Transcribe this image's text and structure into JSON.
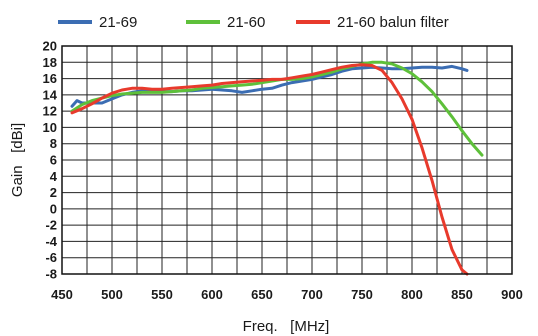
{
  "chart_data": {
    "type": "line",
    "xlabel": "Freq.   [MHz]",
    "ylabel": "Gain   [dBi]",
    "xlim": [
      450,
      900
    ],
    "ylim": [
      -8,
      20
    ],
    "x_ticks": [
      450,
      500,
      550,
      600,
      650,
      700,
      750,
      800,
      850,
      900
    ],
    "y_ticks": [
      20,
      18,
      16,
      14,
      12,
      10,
      8,
      6,
      4,
      2,
      0,
      -2,
      -4,
      -6,
      -8
    ],
    "grid": true,
    "legend_position": "top",
    "series": [
      {
        "name": "21-69",
        "color": "#3b6db3",
        "points": [
          [
            460,
            12.6
          ],
          [
            465,
            13.3
          ],
          [
            470,
            13.0
          ],
          [
            480,
            13.0
          ],
          [
            490,
            13.0
          ],
          [
            500,
            13.5
          ],
          [
            510,
            14.0
          ],
          [
            520,
            14.3
          ],
          [
            530,
            14.5
          ],
          [
            540,
            14.5
          ],
          [
            550,
            14.4
          ],
          [
            560,
            14.4
          ],
          [
            570,
            14.5
          ],
          [
            580,
            14.5
          ],
          [
            590,
            14.6
          ],
          [
            600,
            14.7
          ],
          [
            610,
            14.6
          ],
          [
            620,
            14.5
          ],
          [
            630,
            14.3
          ],
          [
            640,
            14.5
          ],
          [
            650,
            14.7
          ],
          [
            660,
            14.8
          ],
          [
            670,
            15.2
          ],
          [
            680,
            15.5
          ],
          [
            690,
            15.7
          ],
          [
            700,
            15.9
          ],
          [
            710,
            16.2
          ],
          [
            720,
            16.5
          ],
          [
            730,
            16.9
          ],
          [
            740,
            17.2
          ],
          [
            750,
            17.3
          ],
          [
            760,
            17.4
          ],
          [
            770,
            17.3
          ],
          [
            780,
            17.2
          ],
          [
            790,
            17.2
          ],
          [
            800,
            17.3
          ],
          [
            810,
            17.4
          ],
          [
            820,
            17.4
          ],
          [
            830,
            17.3
          ],
          [
            840,
            17.5
          ],
          [
            850,
            17.2
          ],
          [
            855,
            17.0
          ]
        ]
      },
      {
        "name": "21-60",
        "color": "#5ec03a",
        "points": [
          [
            460,
            12.0
          ],
          [
            470,
            12.8
          ],
          [
            480,
            13.3
          ],
          [
            490,
            13.6
          ],
          [
            500,
            13.9
          ],
          [
            510,
            14.1
          ],
          [
            520,
            14.2
          ],
          [
            530,
            14.3
          ],
          [
            540,
            14.3
          ],
          [
            550,
            14.3
          ],
          [
            560,
            14.4
          ],
          [
            570,
            14.5
          ],
          [
            580,
            14.6
          ],
          [
            590,
            14.8
          ],
          [
            600,
            14.9
          ],
          [
            610,
            15.0
          ],
          [
            620,
            15.1
          ],
          [
            630,
            15.2
          ],
          [
            640,
            15.3
          ],
          [
            650,
            15.5
          ],
          [
            660,
            15.7
          ],
          [
            670,
            15.9
          ],
          [
            680,
            15.9
          ],
          [
            690,
            16.0
          ],
          [
            700,
            16.2
          ],
          [
            710,
            16.5
          ],
          [
            720,
            16.8
          ],
          [
            730,
            17.2
          ],
          [
            740,
            17.5
          ],
          [
            750,
            17.8
          ],
          [
            760,
            18.0
          ],
          [
            770,
            18.0
          ],
          [
            780,
            17.8
          ],
          [
            790,
            17.3
          ],
          [
            800,
            16.6
          ],
          [
            810,
            15.6
          ],
          [
            820,
            14.4
          ],
          [
            830,
            12.9
          ],
          [
            840,
            11.3
          ],
          [
            850,
            9.6
          ],
          [
            860,
            8.0
          ],
          [
            870,
            6.6
          ]
        ]
      },
      {
        "name": "21-60 balun filter",
        "color": "#e83a2c",
        "points": [
          [
            460,
            11.8
          ],
          [
            470,
            12.3
          ],
          [
            480,
            12.9
          ],
          [
            490,
            13.6
          ],
          [
            500,
            14.2
          ],
          [
            510,
            14.6
          ],
          [
            520,
            14.8
          ],
          [
            530,
            14.8
          ],
          [
            540,
            14.7
          ],
          [
            550,
            14.7
          ],
          [
            560,
            14.8
          ],
          [
            570,
            14.9
          ],
          [
            580,
            15.0
          ],
          [
            590,
            15.1
          ],
          [
            600,
            15.2
          ],
          [
            610,
            15.4
          ],
          [
            620,
            15.5
          ],
          [
            630,
            15.6
          ],
          [
            640,
            15.7
          ],
          [
            650,
            15.8
          ],
          [
            660,
            15.9
          ],
          [
            670,
            15.9
          ],
          [
            680,
            16.1
          ],
          [
            690,
            16.3
          ],
          [
            700,
            16.5
          ],
          [
            710,
            16.8
          ],
          [
            720,
            17.1
          ],
          [
            730,
            17.4
          ],
          [
            740,
            17.6
          ],
          [
            750,
            17.7
          ],
          [
            760,
            17.6
          ],
          [
            770,
            17.0
          ],
          [
            780,
            15.5
          ],
          [
            790,
            13.5
          ],
          [
            800,
            11.0
          ],
          [
            810,
            7.5
          ],
          [
            820,
            3.5
          ],
          [
            830,
            -1.0
          ],
          [
            840,
            -5.0
          ],
          [
            850,
            -7.5
          ],
          [
            855,
            -8.0
          ]
        ]
      }
    ]
  }
}
